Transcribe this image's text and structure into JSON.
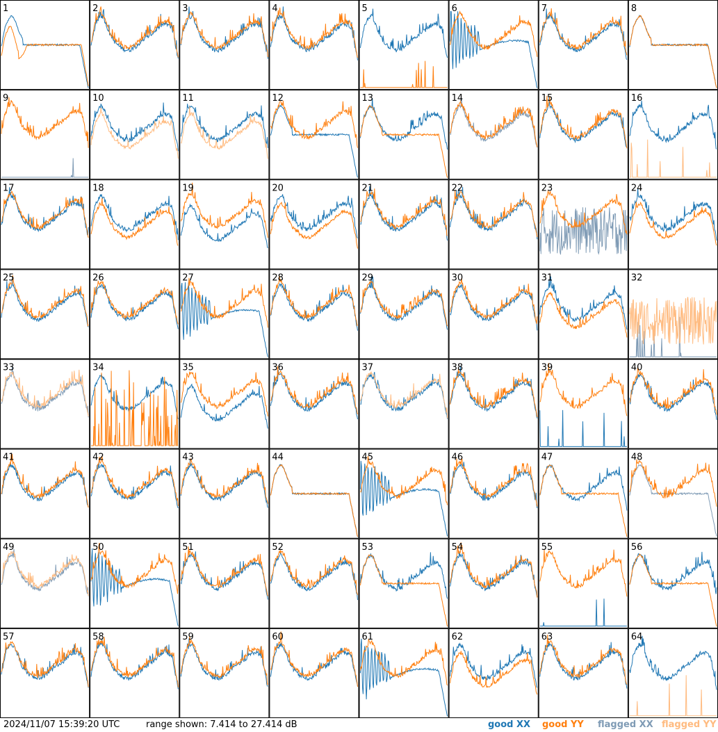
{
  "footer": {
    "timestamp": "2024/11/07 15:39:20 UTC",
    "range_text": "range shown: 7.414 to 27.414 dB"
  },
  "legend": [
    {
      "label": "good XX",
      "color": "#1f77b4"
    },
    {
      "label": "good YY",
      "color": "#ff7f0e"
    },
    {
      "label": "flagged XX",
      "color": "#7f9bb5"
    },
    {
      "label": "flagged YY",
      "color": "#ffbb80"
    }
  ],
  "chart_data": {
    "type": "line",
    "layout": "8x8 small-multiple grid",
    "ylim": [
      7.414,
      27.414
    ],
    "yunit": "dB",
    "series_names": [
      "good XX",
      "good YY",
      "flagged XX",
      "flagged YY"
    ],
    "colors": {
      "good_xx": "#1f77b4",
      "good_yy": "#ff7f0e",
      "flagged_xx": "#7f9bb5",
      "flagged_yy": "#ffbb80"
    },
    "panels": [
      {
        "label": "1",
        "xx": "good",
        "yy": "good",
        "xx_shape": "flat",
        "yy_shape": "flat_dip"
      },
      {
        "label": "2",
        "xx": "good",
        "yy": "good",
        "xx_shape": "normal",
        "yy_shape": "normal"
      },
      {
        "label": "3",
        "xx": "good",
        "yy": "good",
        "xx_shape": "normal",
        "yy_shape": "normal"
      },
      {
        "label": "4",
        "xx": "good",
        "yy": "good",
        "xx_shape": "normal",
        "yy_shape": "normal"
      },
      {
        "label": "5",
        "xx": "good",
        "yy": "good",
        "xx_shape": "normal",
        "yy_shape": "dead"
      },
      {
        "label": "6",
        "xx": "good",
        "yy": "good",
        "xx_shape": "osc",
        "yy_shape": "normal"
      },
      {
        "label": "7",
        "xx": "good",
        "yy": "good",
        "xx_shape": "normal",
        "yy_shape": "normal"
      },
      {
        "label": "8",
        "xx": "good",
        "yy": "good",
        "xx_shape": "flat",
        "yy_shape": "flat"
      },
      {
        "label": "9",
        "xx": "flagged",
        "yy": "good",
        "xx_shape": "dead",
        "yy_shape": "normal"
      },
      {
        "label": "10",
        "xx": "good",
        "yy": "flagged",
        "xx_shape": "normal",
        "yy_shape": "low"
      },
      {
        "label": "11",
        "xx": "good",
        "yy": "flagged",
        "xx_shape": "normal",
        "yy_shape": "low"
      },
      {
        "label": "12",
        "xx": "good",
        "yy": "good",
        "xx_shape": "flat",
        "yy_shape": "normal"
      },
      {
        "label": "13",
        "xx": "good",
        "yy": "good",
        "xx_shape": "normal",
        "yy_shape": "flat"
      },
      {
        "label": "14",
        "xx": "flagged",
        "yy": "good",
        "xx_shape": "normal",
        "yy_shape": "normal"
      },
      {
        "label": "15",
        "xx": "good",
        "yy": "good",
        "xx_shape": "normal",
        "yy_shape": "normal"
      },
      {
        "label": "16",
        "xx": "good",
        "yy": "flagged",
        "xx_shape": "normal",
        "yy_shape": "dead"
      },
      {
        "label": "17",
        "xx": "good",
        "yy": "good",
        "xx_shape": "normal",
        "yy_shape": "normal"
      },
      {
        "label": "18",
        "xx": "good",
        "yy": "good",
        "xx_shape": "normal",
        "yy_shape": "low"
      },
      {
        "label": "19",
        "xx": "good",
        "yy": "good",
        "xx_shape": "low",
        "yy_shape": "normal"
      },
      {
        "label": "20",
        "xx": "good",
        "yy": "good",
        "xx_shape": "normal",
        "yy_shape": "low"
      },
      {
        "label": "21",
        "xx": "good",
        "yy": "good",
        "xx_shape": "normal",
        "yy_shape": "normal"
      },
      {
        "label": "22",
        "xx": "good",
        "yy": "good",
        "xx_shape": "normal",
        "yy_shape": "normal"
      },
      {
        "label": "23",
        "xx": "flagged",
        "yy": "good",
        "xx_shape": "noisy",
        "yy_shape": "normal"
      },
      {
        "label": "24",
        "xx": "good",
        "yy": "good",
        "xx_shape": "normal",
        "yy_shape": "low"
      },
      {
        "label": "25",
        "xx": "good",
        "yy": "good",
        "xx_shape": "normal",
        "yy_shape": "normal"
      },
      {
        "label": "26",
        "xx": "good",
        "yy": "good",
        "xx_shape": "normal",
        "yy_shape": "normal"
      },
      {
        "label": "27",
        "xx": "good",
        "yy": "good",
        "xx_shape": "osc",
        "yy_shape": "normal"
      },
      {
        "label": "28",
        "xx": "good",
        "yy": "good",
        "xx_shape": "normal",
        "yy_shape": "normal"
      },
      {
        "label": "29",
        "xx": "good",
        "yy": "good",
        "xx_shape": "normal",
        "yy_shape": "normal"
      },
      {
        "label": "30",
        "xx": "good",
        "yy": "good",
        "xx_shape": "normal",
        "yy_shape": "normal"
      },
      {
        "label": "31",
        "xx": "good",
        "yy": "good",
        "xx_shape": "normal",
        "yy_shape": "low"
      },
      {
        "label": "32",
        "xx": "flagged",
        "yy": "flagged",
        "xx_shape": "dead",
        "yy_shape": "noisy"
      },
      {
        "label": "33",
        "xx": "flagged",
        "yy": "flagged",
        "xx_shape": "normal",
        "yy_shape": "normal"
      },
      {
        "label": "34",
        "xx": "good",
        "yy": "good",
        "xx_shape": "normal",
        "yy_shape": "spiky"
      },
      {
        "label": "35",
        "xx": "good",
        "yy": "good",
        "xx_shape": "low",
        "yy_shape": "normal"
      },
      {
        "label": "36",
        "xx": "good",
        "yy": "good",
        "xx_shape": "normal",
        "yy_shape": "normal"
      },
      {
        "label": "37",
        "xx": "good",
        "yy": "flagged",
        "xx_shape": "normal",
        "yy_shape": "normal"
      },
      {
        "label": "38",
        "xx": "good",
        "yy": "good",
        "xx_shape": "normal",
        "yy_shape": "normal"
      },
      {
        "label": "39",
        "xx": "good",
        "yy": "good",
        "xx_shape": "dead",
        "yy_shape": "normal"
      },
      {
        "label": "40",
        "xx": "good",
        "yy": "good",
        "xx_shape": "normal",
        "yy_shape": "normal"
      },
      {
        "label": "41",
        "xx": "good",
        "yy": "good",
        "xx_shape": "normal",
        "yy_shape": "normal"
      },
      {
        "label": "42",
        "xx": "good",
        "yy": "good",
        "xx_shape": "normal",
        "yy_shape": "normal"
      },
      {
        "label": "43",
        "xx": "good",
        "yy": "good",
        "xx_shape": "normal",
        "yy_shape": "normal"
      },
      {
        "label": "44",
        "xx": "good",
        "yy": "good",
        "xx_shape": "flat",
        "yy_shape": "flat"
      },
      {
        "label": "45",
        "xx": "good",
        "yy": "good",
        "xx_shape": "osc",
        "yy_shape": "normal"
      },
      {
        "label": "46",
        "xx": "good",
        "yy": "good",
        "xx_shape": "normal",
        "yy_shape": "normal"
      },
      {
        "label": "47",
        "xx": "good",
        "yy": "good",
        "xx_shape": "normal",
        "yy_shape": "flat"
      },
      {
        "label": "48",
        "xx": "flagged",
        "yy": "good",
        "xx_shape": "flat",
        "yy_shape": "normal"
      },
      {
        "label": "49",
        "xx": "flagged",
        "yy": "flagged",
        "xx_shape": "normal",
        "yy_shape": "normal"
      },
      {
        "label": "50",
        "xx": "good",
        "yy": "good",
        "xx_shape": "osc",
        "yy_shape": "normal"
      },
      {
        "label": "51",
        "xx": "good",
        "yy": "good",
        "xx_shape": "normal",
        "yy_shape": "normal"
      },
      {
        "label": "52",
        "xx": "good",
        "yy": "good",
        "xx_shape": "normal",
        "yy_shape": "normal"
      },
      {
        "label": "53",
        "xx": "good",
        "yy": "good",
        "xx_shape": "normal",
        "yy_shape": "flat"
      },
      {
        "label": "54",
        "xx": "good",
        "yy": "good",
        "xx_shape": "normal",
        "yy_shape": "normal"
      },
      {
        "label": "55",
        "xx": "good",
        "yy": "good",
        "xx_shape": "dead",
        "yy_shape": "normal"
      },
      {
        "label": "56",
        "xx": "good",
        "yy": "good",
        "xx_shape": "normal",
        "yy_shape": "flat"
      },
      {
        "label": "57",
        "xx": "good",
        "yy": "good",
        "xx_shape": "normal",
        "yy_shape": "normal"
      },
      {
        "label": "58",
        "xx": "good",
        "yy": "good",
        "xx_shape": "normal",
        "yy_shape": "normal"
      },
      {
        "label": "59",
        "xx": "good",
        "yy": "good",
        "xx_shape": "normal",
        "yy_shape": "normal"
      },
      {
        "label": "60",
        "xx": "good",
        "yy": "good",
        "xx_shape": "normal",
        "yy_shape": "normal"
      },
      {
        "label": "61",
        "xx": "good",
        "yy": "good",
        "xx_shape": "osc",
        "yy_shape": "normal"
      },
      {
        "label": "62",
        "xx": "good",
        "yy": "good",
        "xx_shape": "normal",
        "yy_shape": "low"
      },
      {
        "label": "63",
        "xx": "good",
        "yy": "good",
        "xx_shape": "normal",
        "yy_shape": "normal"
      },
      {
        "label": "64",
        "xx": "good",
        "yy": "flagged",
        "xx_shape": "normal",
        "yy_shape": "dead"
      }
    ]
  }
}
